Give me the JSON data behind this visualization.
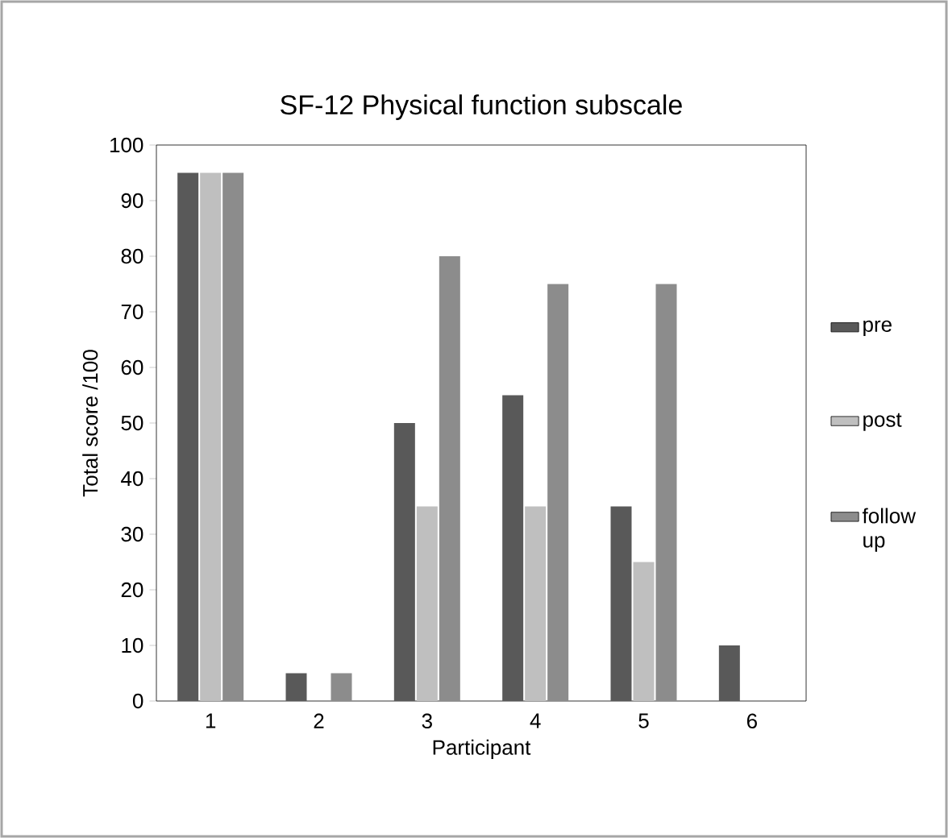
{
  "chart_data": {
    "type": "bar",
    "title": "SF-12 Physical function subscale",
    "xlabel": "Participant",
    "ylabel": "Total score /100",
    "categories": [
      "1",
      "2",
      "3",
      "4",
      "5",
      "6"
    ],
    "series": [
      {
        "name": "pre",
        "color": "#595959",
        "values": [
          95,
          5,
          50,
          55,
          35,
          10
        ]
      },
      {
        "name": "post",
        "color": "#bfbfbf",
        "values": [
          95,
          0,
          35,
          35,
          25,
          0
        ]
      },
      {
        "name": "follow up",
        "color": "#8c8c8c",
        "values": [
          95,
          5,
          80,
          75,
          75,
          0
        ]
      }
    ],
    "ylim": [
      0,
      100
    ],
    "yticks": [
      0,
      10,
      20,
      30,
      40,
      50,
      60,
      70,
      80,
      90,
      100
    ],
    "grid": false,
    "legend": "right"
  }
}
